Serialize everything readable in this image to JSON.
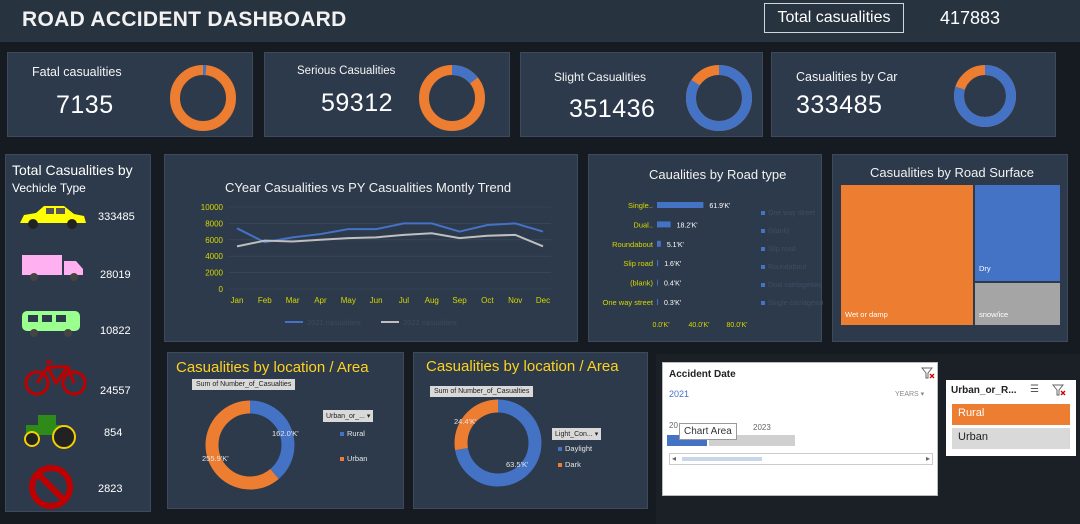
{
  "header": {
    "title": "ROAD ACCIDENT DASHBOARD",
    "total_label": "Total casualities",
    "total_value": "417883"
  },
  "kpis": [
    {
      "label": "Fatal casualities",
      "value": "7135",
      "share": 0.017
    },
    {
      "label": "Serious Casualities",
      "value": "59312",
      "share": 0.142
    },
    {
      "label": "Slight Casualities",
      "value": "351436",
      "share": 0.841
    },
    {
      "label": "Casualities by Car",
      "value": "333485",
      "share": 0.798
    }
  ],
  "vehicles": {
    "title_line1": "Total Casualities by",
    "title_line2": "Vechicle Type",
    "items": [
      {
        "icon": "car-icon",
        "value": "333485"
      },
      {
        "icon": "truck-icon",
        "value": "28019"
      },
      {
        "icon": "bus-icon",
        "value": "10822"
      },
      {
        "icon": "bicycle-icon",
        "value": "24557"
      },
      {
        "icon": "tractor-icon",
        "value": "854"
      },
      {
        "icon": "prohibited-icon",
        "value": "2823"
      }
    ]
  },
  "colors": {
    "orange": "#ed7d31",
    "blue": "#4472c4",
    "panel": "#2d3a4b",
    "yellow_text": "#d6d800",
    "line_cy": "#4472c4",
    "line_py": "#bfbfbf"
  },
  "chart_data": [
    {
      "type": "line",
      "title": "CYear Casualities  vs PY Casualities Montly Trend",
      "categories": [
        "Jan",
        "Feb",
        "Mar",
        "Apr",
        "May",
        "Jun",
        "Jul",
        "Aug",
        "Sep",
        "Oct",
        "Nov",
        "Dec"
      ],
      "series": [
        {
          "name": "2021 casualities",
          "values": [
            7400,
            5700,
            6300,
            6700,
            7300,
            7300,
            8000,
            8000,
            7000,
            7800,
            8000,
            7000
          ]
        },
        {
          "name": "2022 casualities",
          "values": [
            5200,
            5900,
            5800,
            6000,
            6200,
            6300,
            6600,
            6800,
            6200,
            6500,
            6600,
            5200
          ]
        }
      ],
      "yticks": [
        "0",
        "2000",
        "4000",
        "6000",
        "8000",
        "10000"
      ],
      "ylim": [
        0,
        10000
      ]
    },
    {
      "type": "bar",
      "title": "Caualities by Road type",
      "categories": [
        "Single..",
        "Dual..",
        "Roundabout",
        "Slip road",
        "(blank)",
        "One way street"
      ],
      "values": [
        61.9,
        18.2,
        5.1,
        1.6,
        0.4,
        0.3
      ],
      "value_labels": [
        "61.9'K'",
        "18.2'K'",
        "5.1'K'",
        "1.6'K'",
        "0.4'K'",
        "0.3'K'"
      ],
      "xticks": [
        "0.0'K'",
        "40.0'K'",
        "80.0'K'"
      ],
      "xlim": [
        0,
        80
      ],
      "legend": [
        "One way street",
        "(blank)",
        "Slip road",
        "Roundabout",
        "Dual carriageway",
        "Single carriageway"
      ]
    },
    {
      "type": "heatmap",
      "title": "Casualities by Road Surface",
      "cells": [
        {
          "label": "Wet or damp",
          "color": "#ed7d31"
        },
        {
          "label": "Dry",
          "color": "#4472c4"
        },
        {
          "label": "snow/ice",
          "color": "#a5a5a5"
        }
      ]
    },
    {
      "type": "pie",
      "title": "Casualities by location / Area",
      "field_label": "Sum of Number_of_Casualties",
      "filter_label": "Urban_or_...",
      "slices": [
        {
          "name": "Rural",
          "value": 162.0,
          "label": "162.0'K'"
        },
        {
          "name": "Urban",
          "value": 255.9,
          "label": "255.9'K'"
        }
      ]
    },
    {
      "type": "pie",
      "title": "Casualities by location / Area",
      "field_label": "Sum of Number_of_Casualties",
      "filter_label": "Light_Con...",
      "slices": [
        {
          "name": "Daylight",
          "value": 63.5,
          "label": "63.5'K'"
        },
        {
          "name": "Dark",
          "value": 24.4,
          "label": "24.4'K'"
        }
      ]
    }
  ],
  "timeline": {
    "title": "Accident Date",
    "selected": "2021",
    "period": "YEARS",
    "years": [
      "20",
      "2023"
    ],
    "tooltip": "Chart Area"
  },
  "slicer": {
    "title": "Urban_or_R...",
    "items": [
      "Rural",
      "Urban"
    ]
  }
}
